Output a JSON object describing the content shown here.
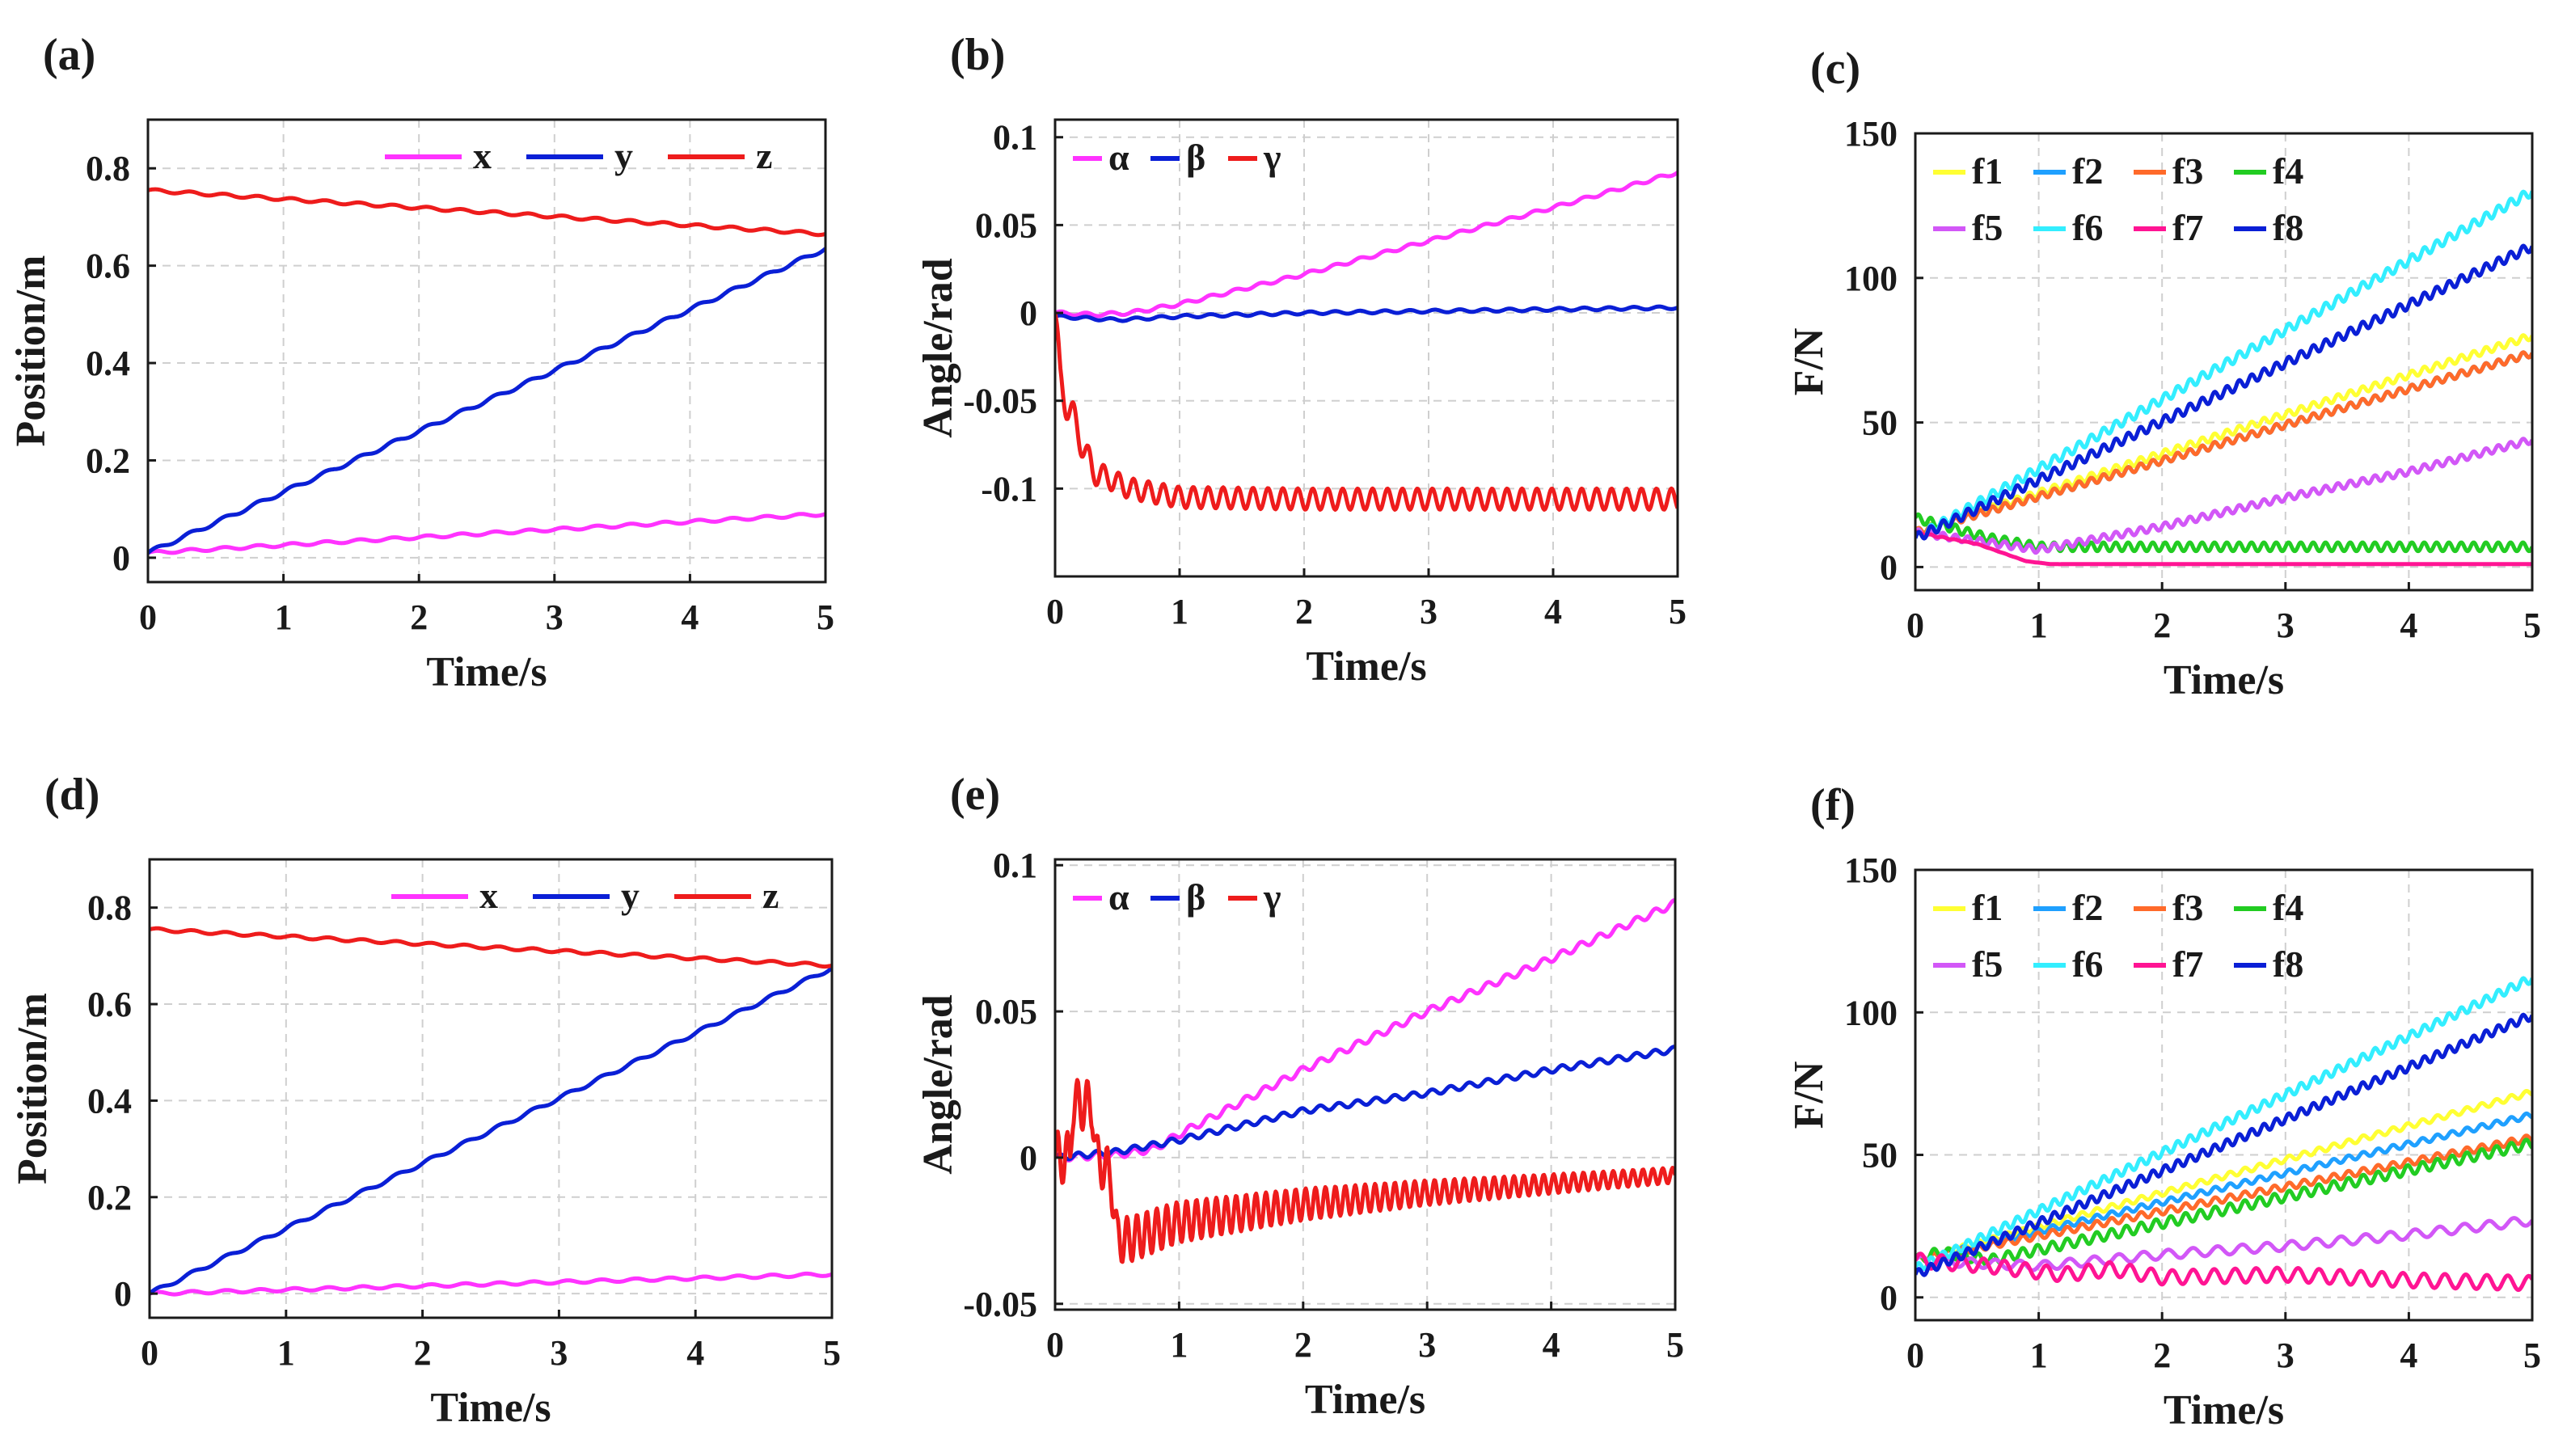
{
  "chart_data": [
    {
      "panel_label": "(a)",
      "type": "line",
      "xlabel": "Time/s",
      "ylabel": "Position/m",
      "xlim": [
        0,
        5
      ],
      "ylim": [
        -0.05,
        0.9
      ],
      "xticks": [
        0,
        1,
        2,
        3,
        4,
        5
      ],
      "yticks": [
        0,
        0.2,
        0.4,
        0.6,
        0.8
      ],
      "ytick_labels": [
        "0",
        "0.2",
        "0.4",
        "0.6",
        "0.8"
      ],
      "legend": "top-right",
      "legend_rows": [
        [
          "x",
          "y",
          "z"
        ]
      ],
      "grid": true,
      "series": [
        {
          "name": "x",
          "color": "#ff33ff",
          "points": [
            [
              0,
              0.01
            ],
            [
              5,
              0.09
            ]
          ],
          "osc": {
            "a": 0.003,
            "p": 0.25,
            "decay": 0
          }
        },
        {
          "name": "y",
          "color": "#0a1fd6",
          "points": [
            [
              0,
              0.01
            ],
            [
              5,
              0.635
            ]
          ],
          "osc": {
            "a": 0.004,
            "p": 0.25,
            "decay": 0
          }
        },
        {
          "name": "z",
          "color": "#ee1c1c",
          "points": [
            [
              0,
              0.755
            ],
            [
              5,
              0.665
            ]
          ],
          "osc": {
            "a": 0.003,
            "p": 0.25,
            "decay": 0
          }
        }
      ]
    },
    {
      "panel_label": "(b)",
      "type": "line",
      "xlabel": "Time/s",
      "ylabel": "Angle/rad",
      "xlim": [
        0,
        5
      ],
      "ylim": [
        -0.15,
        0.11
      ],
      "xticks": [
        0,
        1,
        2,
        3,
        4,
        5
      ],
      "yticks": [
        -0.1,
        -0.05,
        0,
        0.05,
        0.1
      ],
      "ytick_labels": [
        "-0.1",
        "-0.05",
        "0",
        "0.05",
        "0.1"
      ],
      "legend": "top-left",
      "legend_rows": [
        [
          "α",
          "β",
          "γ"
        ]
      ],
      "grid": true,
      "series": [
        {
          "name": "α",
          "color": "#ff33ff",
          "points": [
            [
              0,
              0.0
            ],
            [
              0.3,
              -0.001
            ],
            [
              0.6,
              0.0
            ],
            [
              1.0,
              0.005
            ],
            [
              2.0,
              0.022
            ],
            [
              3.0,
              0.041
            ],
            [
              4.0,
              0.06
            ],
            [
              5.0,
              0.08
            ]
          ],
          "osc": {
            "a": 0.001,
            "p": 0.2,
            "decay": 0
          }
        },
        {
          "name": "β",
          "color": "#0a1fd6",
          "points": [
            [
              0,
              -0.002
            ],
            [
              0.5,
              -0.004
            ],
            [
              1.0,
              -0.002
            ],
            [
              2.0,
              0.0
            ],
            [
              3.0,
              0.001
            ],
            [
              4.0,
              0.002
            ],
            [
              5.0,
              0.003
            ]
          ],
          "osc": {
            "a": 0.0008,
            "p": 0.2,
            "decay": 0
          }
        },
        {
          "name": "γ",
          "color": "#ee1c1c",
          "points": [
            [
              0,
              0.0
            ],
            [
              0.04,
              -0.04
            ],
            [
              0.3,
              -0.09
            ],
            [
              0.6,
              -0.1
            ],
            [
              1.0,
              -0.105
            ],
            [
              2.0,
              -0.106
            ],
            [
              3.0,
              -0.106
            ],
            [
              4.0,
              -0.106
            ],
            [
              5.0,
              -0.106
            ]
          ],
          "osc": {
            "a": 0.012,
            "p": 0.12,
            "decay": 1.6,
            "floor": 0.006
          }
        }
      ]
    },
    {
      "panel_label": "(c)",
      "type": "line",
      "xlabel": "Time/s",
      "ylabel": "F/N",
      "xlim": [
        0,
        5
      ],
      "ylim": [
        -8,
        150
      ],
      "xticks": [
        0,
        1,
        2,
        3,
        4,
        5
      ],
      "yticks": [
        0,
        50,
        100,
        150
      ],
      "ytick_labels": [
        "0",
        "50",
        "100",
        "150"
      ],
      "legend": "top-left",
      "legend_rows": [
        [
          "f1",
          "f2",
          "f3",
          "f4"
        ],
        [
          "f5",
          "f6",
          "f7",
          "f8"
        ]
      ],
      "grid": true,
      "series": [
        {
          "name": "f1",
          "color": "#ffff33",
          "points": [
            [
              0,
              12
            ],
            [
              5,
              80
            ]
          ],
          "osc": {
            "a": 1.2,
            "p": 0.1,
            "decay": 0
          }
        },
        {
          "name": "f2",
          "color": "#1fa0ff",
          "points": [
            [
              0,
              12
            ],
            [
              5,
              74
            ]
          ],
          "osc": {
            "a": 1.2,
            "p": 0.1,
            "decay": 0
          }
        },
        {
          "name": "f3",
          "color": "#ff6a2a",
          "points": [
            [
              0,
              12
            ],
            [
              5,
              74
            ]
          ],
          "osc": {
            "a": 1.2,
            "p": 0.1,
            "decay": 0
          }
        },
        {
          "name": "f4",
          "color": "#22cc22",
          "points": [
            [
              0,
              17
            ],
            [
              0.6,
              10
            ],
            [
              1.0,
              7
            ],
            [
              2.0,
              7
            ],
            [
              3.0,
              7
            ],
            [
              4.0,
              7
            ],
            [
              5.0,
              7
            ]
          ],
          "osc": {
            "a": 1.5,
            "p": 0.1,
            "decay": 0
          }
        },
        {
          "name": "f5",
          "color": "#d257f7",
          "points": [
            [
              0,
              12
            ],
            [
              1.0,
              6
            ],
            [
              2.0,
              14
            ],
            [
              3.0,
              24
            ],
            [
              4.0,
              33
            ],
            [
              5.0,
              44
            ]
          ],
          "osc": {
            "a": 1.2,
            "p": 0.1,
            "decay": 0
          }
        },
        {
          "name": "f6",
          "color": "#33eeff",
          "points": [
            [
              0,
              10
            ],
            [
              5,
              130
            ]
          ],
          "osc": {
            "a": 1.6,
            "p": 0.1,
            "decay": 0
          }
        },
        {
          "name": "f7",
          "color": "#ff1493",
          "points": [
            [
              0,
              12
            ],
            [
              0.5,
              8
            ],
            [
              0.9,
              2
            ],
            [
              1.1,
              1
            ],
            [
              5.0,
              1
            ]
          ],
          "osc": {
            "a": 0.4,
            "p": 0.1,
            "decay": 3
          }
        },
        {
          "name": "f8",
          "color": "#0a1fd6",
          "points": [
            [
              0,
              10
            ],
            [
              5,
              111
            ]
          ],
          "osc": {
            "a": 1.6,
            "p": 0.1,
            "decay": 0
          }
        }
      ]
    },
    {
      "panel_label": "(d)",
      "type": "line",
      "xlabel": "Time/s",
      "ylabel": "Position/m",
      "xlim": [
        0,
        5
      ],
      "ylim": [
        -0.05,
        0.9
      ],
      "xticks": [
        0,
        1,
        2,
        3,
        4,
        5
      ],
      "yticks": [
        0,
        0.2,
        0.4,
        0.6,
        0.8
      ],
      "ytick_labels": [
        "0",
        "0.2",
        "0.4",
        "0.6",
        "0.8"
      ],
      "legend": "top-right",
      "legend_rows": [
        [
          "x",
          "y",
          "z"
        ]
      ],
      "grid": true,
      "series": [
        {
          "name": "x",
          "color": "#ff33ff",
          "points": [
            [
              0,
              0.0
            ],
            [
              5,
              0.04
            ]
          ],
          "osc": {
            "a": 0.003,
            "p": 0.25,
            "decay": 0
          }
        },
        {
          "name": "y",
          "color": "#0a1fd6",
          "points": [
            [
              0,
              0.0
            ],
            [
              5,
              0.675
            ]
          ],
          "osc": {
            "a": 0.004,
            "p": 0.25,
            "decay": 0
          }
        },
        {
          "name": "z",
          "color": "#ee1c1c",
          "points": [
            [
              0,
              0.755
            ],
            [
              5,
              0.68
            ]
          ],
          "osc": {
            "a": 0.003,
            "p": 0.25,
            "decay": 0
          }
        }
      ]
    },
    {
      "panel_label": "(e)",
      "type": "line",
      "xlabel": "Time/s",
      "ylabel": "Angle/rad",
      "xlim": [
        0,
        5
      ],
      "ylim": [
        -0.052,
        0.102
      ],
      "xticks": [
        0,
        1,
        2,
        3,
        4,
        5
      ],
      "yticks": [
        -0.05,
        0,
        0.05,
        0.1
      ],
      "ytick_labels": [
        "-0.05",
        "0",
        "0.05",
        "0.1"
      ],
      "legend": "top-left",
      "legend_rows": [
        [
          "α",
          "β",
          "γ"
        ]
      ],
      "grid": true,
      "series": [
        {
          "name": "α",
          "color": "#ff33ff",
          "points": [
            [
              0,
              0.0
            ],
            [
              0.5,
              0.001
            ],
            [
              0.8,
              0.003
            ],
            [
              1.0,
              0.008
            ],
            [
              2.0,
              0.03
            ],
            [
              3.0,
              0.05
            ],
            [
              4.0,
              0.068
            ],
            [
              5.0,
              0.087
            ]
          ],
          "osc": {
            "a": 0.0012,
            "p": 0.15,
            "decay": 0
          }
        },
        {
          "name": "β",
          "color": "#0a1fd6",
          "points": [
            [
              0,
              0.0
            ],
            [
              0.5,
              0.002
            ],
            [
              1.0,
              0.006
            ],
            [
              2.0,
              0.016
            ],
            [
              3.0,
              0.022
            ],
            [
              4.0,
              0.03
            ],
            [
              5.0,
              0.037
            ]
          ],
          "osc": {
            "a": 0.001,
            "p": 0.15,
            "decay": 0
          }
        },
        {
          "name": "γ",
          "color": "#ee1c1c",
          "points": [
            [
              0,
              0.0
            ],
            [
              0.12,
              0.0
            ],
            [
              0.14,
              0.018
            ],
            [
              0.3,
              0.018
            ],
            [
              0.33,
              0.0
            ],
            [
              0.45,
              -0.006
            ],
            [
              0.5,
              -0.028
            ],
            [
              0.6,
              -0.028
            ],
            [
              1.0,
              -0.022
            ],
            [
              2.0,
              -0.016
            ],
            [
              2.5,
              -0.014
            ],
            [
              3.0,
              -0.012
            ],
            [
              4.0,
              -0.009
            ],
            [
              5.0,
              -0.006
            ]
          ],
          "osc": {
            "a": 0.009,
            "p": 0.08,
            "decay": 0.25,
            "floor": 0.002
          }
        }
      ]
    },
    {
      "panel_label": "(f)",
      "type": "line",
      "xlabel": "Time/s",
      "ylabel": "F/N",
      "xlim": [
        0,
        5
      ],
      "ylim": [
        -8,
        150
      ],
      "xticks": [
        0,
        1,
        2,
        3,
        4,
        5
      ],
      "yticks": [
        0,
        50,
        100,
        150
      ],
      "ytick_labels": [
        "0",
        "50",
        "100",
        "150"
      ],
      "legend": "top-left",
      "legend_rows": [
        [
          "f1",
          "f2",
          "f3",
          "f4"
        ],
        [
          "f5",
          "f6",
          "f7",
          "f8"
        ]
      ],
      "grid": true,
      "series": [
        {
          "name": "f1",
          "color": "#ffff33",
          "points": [
            [
              0,
              13
            ],
            [
              5,
              72
            ]
          ],
          "osc": {
            "a": 1.0,
            "p": 0.12,
            "decay": 0
          }
        },
        {
          "name": "f2",
          "color": "#1fa0ff",
          "points": [
            [
              0,
              13
            ],
            [
              5,
              64
            ]
          ],
          "osc": {
            "a": 1.0,
            "p": 0.12,
            "decay": 0
          }
        },
        {
          "name": "f3",
          "color": "#ff6a2a",
          "points": [
            [
              0,
              13
            ],
            [
              5,
              56
            ]
          ],
          "osc": {
            "a": 1.2,
            "p": 0.12,
            "decay": 0
          }
        },
        {
          "name": "f4",
          "color": "#22cc22",
          "points": [
            [
              0,
              13
            ],
            [
              0.2,
              16
            ],
            [
              0.6,
              13
            ],
            [
              5,
              54
            ]
          ],
          "osc": {
            "a": 1.8,
            "p": 0.12,
            "decay": 0
          }
        },
        {
          "name": "f5",
          "color": "#d257f7",
          "points": [
            [
              0,
              13
            ],
            [
              1.0,
              11
            ],
            [
              2.0,
              15
            ],
            [
              3.0,
              18
            ],
            [
              4.0,
              22
            ],
            [
              5.0,
              27
            ]
          ],
          "osc": {
            "a": 1.6,
            "p": 0.2,
            "decay": 0
          }
        },
        {
          "name": "f6",
          "color": "#33eeff",
          "points": [
            [
              0,
              10
            ],
            [
              5,
              112
            ]
          ],
          "osc": {
            "a": 1.5,
            "p": 0.1,
            "decay": 0
          }
        },
        {
          "name": "f7",
          "color": "#ff1493",
          "points": [
            [
              0,
              13
            ],
            [
              0.6,
              11
            ],
            [
              1.2,
              8
            ],
            [
              1.6,
              10
            ],
            [
              2.0,
              7
            ],
            [
              3.0,
              8
            ],
            [
              4.0,
              6
            ],
            [
              5.0,
              5
            ]
          ],
          "osc": {
            "a": 2.5,
            "p": 0.17,
            "decay": 0
          }
        },
        {
          "name": "f8",
          "color": "#0a1fd6",
          "points": [
            [
              0,
              8
            ],
            [
              5,
              99
            ]
          ],
          "osc": {
            "a": 1.5,
            "p": 0.1,
            "decay": 0
          }
        }
      ]
    }
  ]
}
